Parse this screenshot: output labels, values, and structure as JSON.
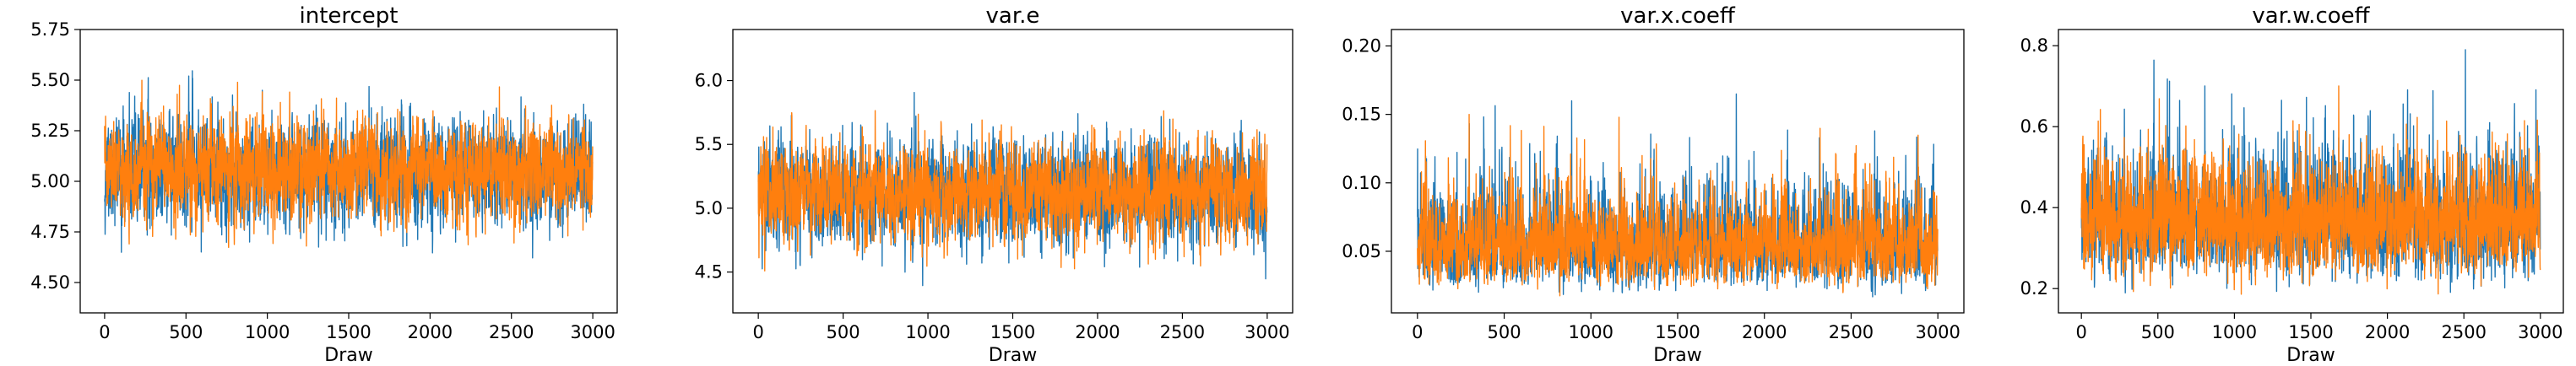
{
  "figure": {
    "background": "#ffffff"
  },
  "chart_data": [
    {
      "type": "line",
      "title": "intercept",
      "xlabel": "Draw",
      "ylabel": "",
      "xlim": [
        -150,
        3150
      ],
      "ylim": [
        4.35,
        5.75
      ],
      "xticks": [
        0,
        500,
        1000,
        1500,
        2000,
        2500,
        3000
      ],
      "xtick_labels": [
        "0",
        "500",
        "1000",
        "1500",
        "2000",
        "2500",
        "3000"
      ],
      "yticks": [
        4.5,
        4.75,
        5.0,
        5.25,
        5.5,
        5.75
      ],
      "ytick_labels": [
        "4.50",
        "4.75",
        "5.00",
        "5.25",
        "5.50",
        "5.75"
      ],
      "n_draws": 3000,
      "grid": false,
      "series": [
        {
          "color": "#1f77b4",
          "center": 5.05,
          "spread": 0.13,
          "min": 4.4,
          "max": 5.68,
          "seed": 11
        },
        {
          "color": "#ff7f0e",
          "center": 5.05,
          "spread": 0.12,
          "min": 4.42,
          "max": 5.68,
          "seed": 23
        }
      ]
    },
    {
      "type": "line",
      "title": "var.e",
      "xlabel": "Draw",
      "ylabel": "",
      "xlim": [
        -150,
        3150
      ],
      "ylim": [
        4.18,
        6.4
      ],
      "xticks": [
        0,
        500,
        1000,
        1500,
        2000,
        2500,
        3000
      ],
      "xtick_labels": [
        "0",
        "500",
        "1000",
        "1500",
        "2000",
        "2500",
        "3000"
      ],
      "yticks": [
        4.5,
        5.0,
        5.5,
        6.0
      ],
      "ytick_labels": [
        "4.5",
        "5.0",
        "5.5",
        "6.0"
      ],
      "n_draws": 3000,
      "grid": false,
      "series": [
        {
          "color": "#1f77b4",
          "center": 5.12,
          "spread": 0.2,
          "min": 4.28,
          "max": 5.95,
          "seed": 31
        },
        {
          "color": "#ff7f0e",
          "center": 5.12,
          "spread": 0.19,
          "min": 4.35,
          "max": 6.3,
          "seed": 47
        }
      ]
    },
    {
      "type": "line",
      "title": "var.x.coeff",
      "xlabel": "Draw",
      "ylabel": "",
      "xlim": [
        -150,
        3150
      ],
      "ylim": [
        0.005,
        0.212
      ],
      "xticks": [
        0,
        500,
        1000,
        1500,
        2000,
        2500,
        3000
      ],
      "xtick_labels": [
        "0",
        "500",
        "1000",
        "1500",
        "2000",
        "2500",
        "3000"
      ],
      "yticks": [
        0.05,
        0.1,
        0.15,
        0.2
      ],
      "ytick_labels": [
        "0.05",
        "0.10",
        "0.15",
        "0.20"
      ],
      "n_draws": 3000,
      "grid": false,
      "series": [
        {
          "color": "#1f77b4",
          "center": 0.055,
          "spread": 0.018,
          "min": 0.015,
          "max": 0.2,
          "seed": 53,
          "skew": true
        },
        {
          "color": "#ff7f0e",
          "center": 0.055,
          "spread": 0.017,
          "min": 0.015,
          "max": 0.15,
          "seed": 67,
          "skew": true
        }
      ]
    },
    {
      "type": "line",
      "title": "var.w.coeff",
      "xlabel": "Draw",
      "ylabel": "",
      "xlim": [
        -150,
        3150
      ],
      "ylim": [
        0.14,
        0.84
      ],
      "xticks": [
        0,
        500,
        1000,
        1500,
        2000,
        2500,
        3000
      ],
      "xtick_labels": [
        "0",
        "500",
        "1000",
        "1500",
        "2000",
        "2500",
        "3000"
      ],
      "yticks": [
        0.2,
        0.4,
        0.6,
        0.8
      ],
      "ytick_labels": [
        "0.2",
        "0.4",
        "0.6",
        "0.8"
      ],
      "n_draws": 3000,
      "grid": false,
      "series": [
        {
          "color": "#1f77b4",
          "center": 0.37,
          "spread": 0.075,
          "min": 0.18,
          "max": 0.79,
          "seed": 71,
          "skew": true
        },
        {
          "color": "#ff7f0e",
          "center": 0.37,
          "spread": 0.072,
          "min": 0.16,
          "max": 0.82,
          "seed": 89,
          "skew": true
        }
      ]
    }
  ]
}
